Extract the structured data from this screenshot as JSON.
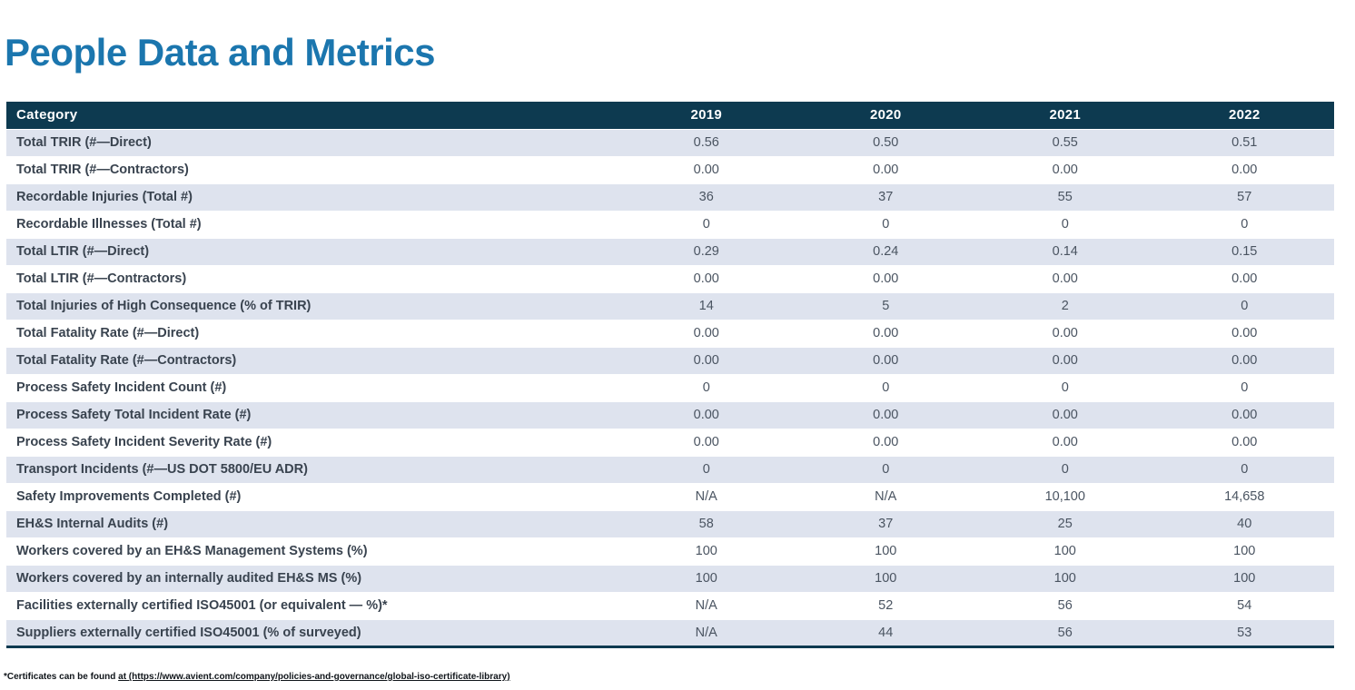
{
  "title": "People Data and Metrics",
  "colors": {
    "title": "#1b76ae",
    "header_bg": "#0d3a50",
    "row_shaded": "#dee3ee",
    "header_text": "#ffffff"
  },
  "table": {
    "header": {
      "category": "Category",
      "years": [
        "2019",
        "2020",
        "2021",
        "2022"
      ]
    },
    "rows": [
      {
        "category": "Total TRIR (#—Direct)",
        "values": [
          "0.56",
          "0.50",
          "0.55",
          "0.51"
        ]
      },
      {
        "category": "Total TRIR (#—Contractors)",
        "values": [
          "0.00",
          "0.00",
          "0.00",
          "0.00"
        ]
      },
      {
        "category": "Recordable Injuries (Total #)",
        "values": [
          "36",
          "37",
          "55",
          "57"
        ]
      },
      {
        "category": "Recordable Illnesses (Total #)",
        "values": [
          "0",
          "0",
          "0",
          "0"
        ]
      },
      {
        "category": "Total LTIR (#—Direct)",
        "values": [
          "0.29",
          "0.24",
          "0.14",
          "0.15"
        ]
      },
      {
        "category": "Total LTIR (#—Contractors)",
        "values": [
          "0.00",
          "0.00",
          "0.00",
          "0.00"
        ]
      },
      {
        "category": "Total Injuries of High Consequence (% of TRIR)",
        "values": [
          "14",
          "5",
          "2",
          "0"
        ]
      },
      {
        "category": "Total Fatality Rate (#—Direct)",
        "values": [
          "0.00",
          "0.00",
          "0.00",
          "0.00"
        ]
      },
      {
        "category": "Total Fatality Rate (#—Contractors)",
        "values": [
          "0.00",
          "0.00",
          "0.00",
          "0.00"
        ]
      },
      {
        "category": "Process Safety Incident Count (#)",
        "values": [
          "0",
          "0",
          "0",
          "0"
        ]
      },
      {
        "category": "Process Safety Total Incident Rate (#)",
        "values": [
          "0.00",
          "0.00",
          "0.00",
          "0.00"
        ]
      },
      {
        "category": "Process Safety Incident Severity Rate (#)",
        "values": [
          "0.00",
          "0.00",
          "0.00",
          "0.00"
        ]
      },
      {
        "category": "Transport Incidents (#—US DOT 5800/EU ADR)",
        "values": [
          "0",
          "0",
          "0",
          "0"
        ]
      },
      {
        "category": "Safety Improvements Completed (#)",
        "values": [
          "N/A",
          "N/A",
          "10,100",
          "14,658"
        ]
      },
      {
        "category": "EH&S Internal Audits (#)",
        "values": [
          "58",
          "37",
          "25",
          "40"
        ]
      },
      {
        "category": "Workers covered by an EH&S Management Systems (%)",
        "values": [
          "100",
          "100",
          "100",
          "100"
        ]
      },
      {
        "category": "Workers covered by an internally audited EH&S MS (%)",
        "values": [
          "100",
          "100",
          "100",
          "100"
        ]
      },
      {
        "category": "Facilities externally certified ISO45001 (or equivalent — %)*",
        "values": [
          "N/A",
          "52",
          "56",
          "54"
        ]
      },
      {
        "category": "Suppliers externally certified ISO45001 (% of surveyed)",
        "values": [
          "N/A",
          "44",
          "56",
          "53"
        ]
      }
    ]
  },
  "footnote": {
    "prefix": "*Certificates can be found ",
    "link_text": "at (https://www.avient.com/company/policies-and-governance/global-iso-certificate-library)"
  }
}
